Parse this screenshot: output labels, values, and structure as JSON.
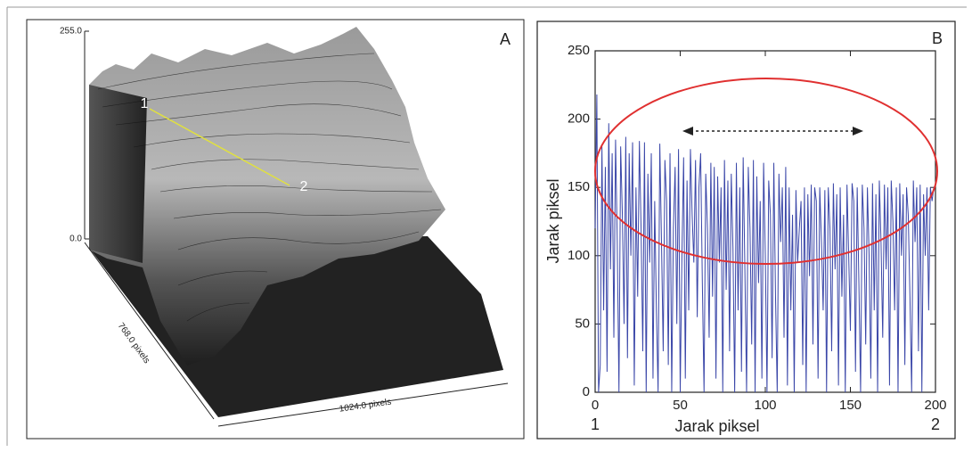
{
  "panel_a": {
    "label": "A",
    "z_max": "255.0",
    "z_min": "0.0",
    "y_axis": "768.0 pixels",
    "x_axis": "1024.0 pixels",
    "point_start": "1",
    "point_end": "2"
  },
  "chart_data": {
    "type": "line",
    "panel_label": "B",
    "x_label": "Jarak piksel",
    "y_label": "Jarak piksel",
    "annotations": [
      "1",
      "2"
    ],
    "color": "#3a46a8",
    "x": [
      0,
      1,
      2,
      3,
      4,
      5,
      6,
      7,
      8,
      9,
      10,
      11,
      12,
      13,
      14,
      15,
      16,
      17,
      18,
      19,
      20,
      21,
      22,
      23,
      24,
      25,
      26,
      27,
      28,
      29,
      30,
      31,
      32,
      33,
      34,
      35,
      36,
      37,
      38,
      39,
      40,
      41,
      42,
      43,
      44,
      45,
      46,
      47,
      48,
      49,
      50,
      51,
      52,
      53,
      54,
      55,
      56,
      57,
      58,
      59,
      60,
      61,
      62,
      63,
      64,
      65,
      66,
      67,
      68,
      69,
      70,
      71,
      72,
      73,
      74,
      75,
      76,
      77,
      78,
      79,
      80,
      81,
      82,
      83,
      84,
      85,
      86,
      87,
      88,
      89,
      90,
      91,
      92,
      93,
      94,
      95,
      96,
      97,
      98,
      99,
      100,
      101,
      102,
      103,
      104,
      105,
      106,
      107,
      108,
      109,
      110,
      111,
      112,
      113,
      114,
      115,
      116,
      117,
      118,
      119,
      120,
      121,
      122,
      123,
      124,
      125,
      126,
      127,
      128,
      129,
      130,
      131,
      132,
      133,
      134,
      135,
      136,
      137,
      138,
      139,
      140,
      141,
      142,
      143,
      144,
      145,
      146,
      147,
      148,
      149,
      150,
      151,
      152,
      153,
      154,
      155,
      156,
      157,
      158,
      159,
      160,
      161,
      162,
      163,
      164,
      165,
      166,
      167,
      168,
      169,
      170,
      171,
      172,
      173,
      174,
      175,
      176,
      177,
      178,
      179,
      180,
      181,
      182,
      183,
      184,
      185,
      186,
      187,
      188,
      189,
      190,
      191,
      192,
      193,
      194,
      195,
      196,
      197,
      198,
      199
    ],
    "values": [
      120,
      218,
      0,
      20,
      180,
      60,
      165,
      15,
      197,
      90,
      175,
      40,
      185,
      110,
      0,
      180,
      130,
      50,
      187,
      25,
      175,
      100,
      183,
      5,
      150,
      70,
      184,
      120,
      30,
      183,
      0,
      160,
      95,
      175,
      10,
      140,
      60,
      0,
      182,
      110,
      30,
      170,
      140,
      20,
      175,
      0,
      120,
      165,
      50,
      178,
      0,
      100,
      172,
      10,
      155,
      60,
      178,
      130,
      95,
      170,
      55,
      150,
      175,
      80,
      0,
      160,
      120,
      40,
      168,
      70,
      165,
      10,
      158,
      95,
      150,
      0,
      170,
      75,
      155,
      30,
      160,
      105,
      0,
      168,
      60,
      150,
      15,
      172,
      90,
      0,
      165,
      120,
      35,
      170,
      0,
      158,
      80,
      140,
      10,
      168,
      100,
      0,
      155,
      130,
      25,
      168,
      70,
      0,
      160,
      110,
      150,
      40,
      165,
      5,
      150,
      60,
      130,
      0,
      148,
      95,
      120,
      140,
      20,
      150,
      0,
      145,
      85,
      152,
      35,
      150,
      140,
      10,
      150,
      110,
      60,
      148,
      0,
      150,
      120,
      30,
      153,
      90,
      145,
      5,
      150,
      70,
      130,
      0,
      152,
      100,
      45,
      153,
      140,
      15,
      150,
      80,
      0,
      152,
      120,
      35,
      150,
      100,
      10,
      153,
      60,
      145,
      0,
      155,
      110,
      40,
      152,
      90,
      150,
      5,
      155,
      125,
      60,
      150,
      0,
      153,
      100,
      145,
      20,
      150,
      130,
      70,
      0,
      155,
      110,
      150,
      30,
      152,
      0,
      145,
      100,
      150,
      60,
      150,
      140,
      150
    ],
    "xlim": [
      0,
      200
    ],
    "xticks": [
      0,
      50,
      100,
      150,
      200
    ],
    "ylim": [
      0,
      250
    ],
    "yticks": [
      0,
      50,
      100,
      150,
      200,
      250
    ]
  }
}
